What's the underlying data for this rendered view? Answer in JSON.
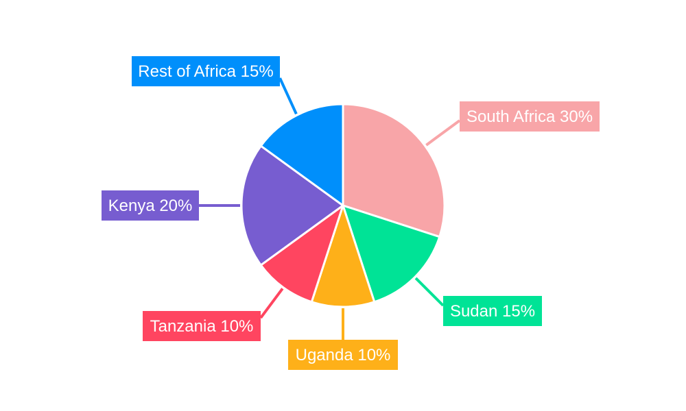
{
  "chart_data": {
    "type": "pie",
    "title": "",
    "slices": [
      {
        "label": "South Africa",
        "value": 30,
        "display": "South Africa 30%",
        "color": "#f8a5a8"
      },
      {
        "label": "Sudan",
        "value": 15,
        "display": "Sudan 15%",
        "color": "#00e396"
      },
      {
        "label": "Uganda",
        "value": 10,
        "display": "Uganda 10%",
        "color": "#feb019"
      },
      {
        "label": "Tanzania",
        "value": 10,
        "display": "Tanzania 10%",
        "color": "#ff4560"
      },
      {
        "label": "Kenya",
        "value": 20,
        "display": "Kenya 20%",
        "color": "#775dd0"
      },
      {
        "label": "Rest of Africa",
        "value": 15,
        "display": "Rest of Africa 15%",
        "color": "#008ffb"
      }
    ],
    "legend": "none"
  }
}
